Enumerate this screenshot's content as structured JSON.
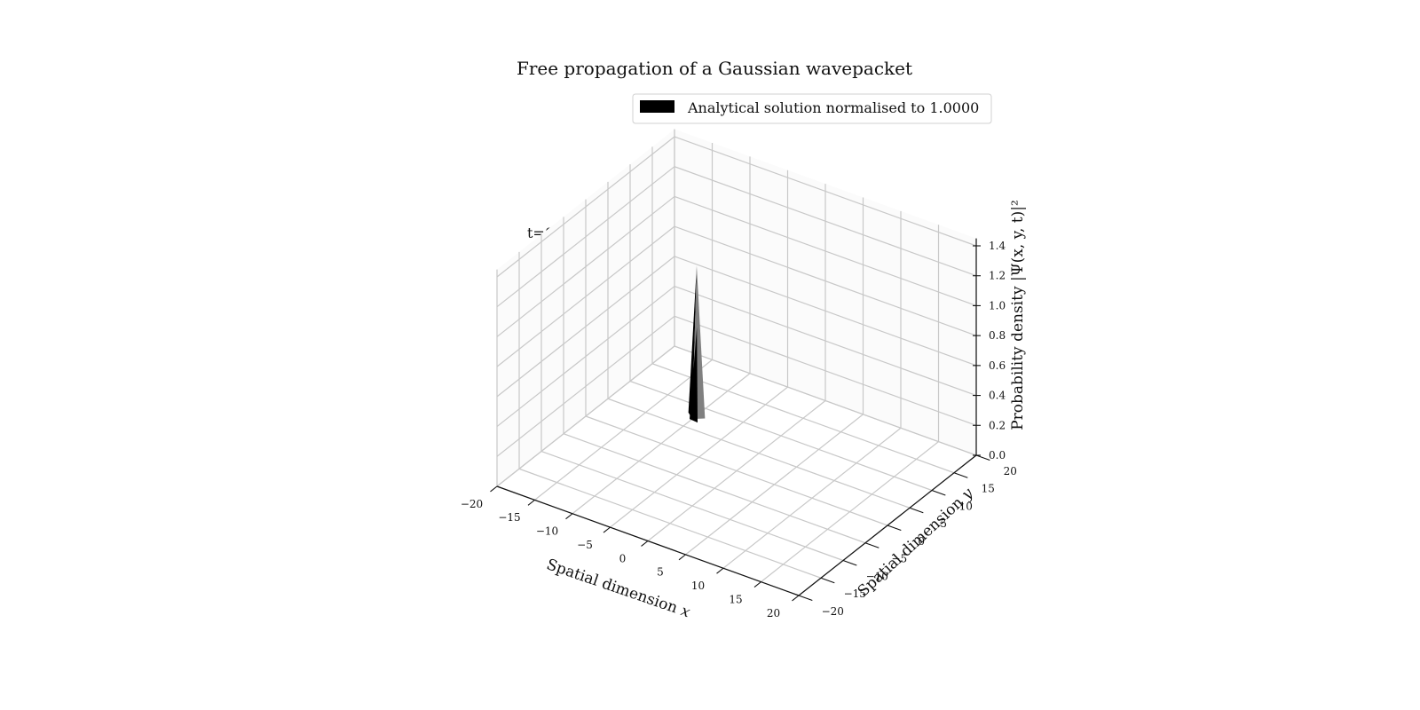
{
  "chart_data": {
    "type": "surface3d",
    "title": "Free propagation of a Gaussian wavepacket",
    "legend": {
      "entries": [
        "Analytical solution normalised to 1.0000"
      ],
      "placement": "top-center",
      "swatch_color": "#000000"
    },
    "annotation": "t=0.000e+00",
    "x_axis": {
      "label": "Spatial dimension x",
      "ticks": [
        "−20",
        "−15",
        "−10",
        "−5",
        "0",
        "5",
        "10",
        "15",
        "20"
      ],
      "range": [
        -20,
        20
      ]
    },
    "y_axis": {
      "label": "Spatial dimension y",
      "ticks": [
        "−20",
        "−15",
        "−10",
        "−5",
        "0",
        "5",
        "10",
        "15",
        "20"
      ],
      "range": [
        -20,
        20
      ]
    },
    "z_axis": {
      "label": "Probability density |Ψ(x, y, t)|²",
      "ticks": [
        "0.0",
        "0.2",
        "0.4",
        "0.6",
        "0.8",
        "1.0",
        "1.2",
        "1.4"
      ],
      "range": [
        0,
        1.45
      ]
    },
    "surface": {
      "peak_x": -10,
      "peak_y": 8,
      "peak_height": 1.0,
      "colors": {
        "front": "#000000",
        "side": "#808080"
      }
    },
    "grid": true
  }
}
